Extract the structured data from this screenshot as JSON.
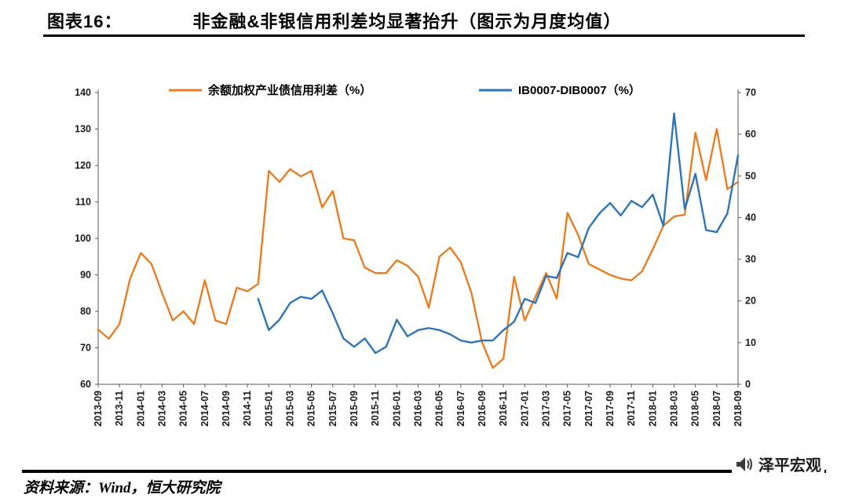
{
  "header": {
    "label": "图表16：",
    "title": "非金融&非银信用利差均显著抬升（图示为月度均值）"
  },
  "chart_data": {
    "type": "line",
    "title": "非金融&非银信用利差均显著抬升（图示为月度均值）",
    "grid": false,
    "legend_position": "top",
    "x": [
      "2013-09",
      "2013-10",
      "2013-11",
      "2013-12",
      "2014-01",
      "2014-02",
      "2014-03",
      "2014-04",
      "2014-05",
      "2014-06",
      "2014-07",
      "2014-08",
      "2014-09",
      "2014-10",
      "2014-11",
      "2014-12",
      "2015-01",
      "2015-02",
      "2015-03",
      "2015-04",
      "2015-05",
      "2015-06",
      "2015-07",
      "2015-08",
      "2015-09",
      "2015-10",
      "2015-11",
      "2015-12",
      "2016-01",
      "2016-02",
      "2016-03",
      "2016-04",
      "2016-05",
      "2016-06",
      "2016-07",
      "2016-08",
      "2016-09",
      "2016-10",
      "2016-11",
      "2016-12",
      "2017-01",
      "2017-02",
      "2017-03",
      "2017-04",
      "2017-05",
      "2017-06",
      "2017-07",
      "2017-08",
      "2017-09",
      "2017-10",
      "2017-11",
      "2017-12",
      "2018-01",
      "2018-02",
      "2018-03",
      "2018-04",
      "2018-05",
      "2018-06",
      "2018-07",
      "2018-08",
      "2018-09"
    ],
    "x_tick_labels": [
      "2013-09",
      "2013-11",
      "2014-01",
      "2014-03",
      "2014-05",
      "2014-07",
      "2014-09",
      "2014-11",
      "2015-01",
      "2015-03",
      "2015-05",
      "2015-07",
      "2015-09",
      "2015-11",
      "2016-01",
      "2016-03",
      "2016-05",
      "2016-07",
      "2016-09",
      "2016-11",
      "2017-01",
      "2017-03",
      "2017-05",
      "2017-07",
      "2017-09",
      "2017-11",
      "2018-01",
      "2018-03",
      "2018-05",
      "2018-07",
      "2018-09"
    ],
    "left_axis": {
      "min": 60,
      "max": 140,
      "ticks": [
        140,
        130,
        120,
        110,
        100,
        90,
        80,
        70,
        60
      ]
    },
    "right_axis": {
      "min": 0,
      "max": 70,
      "ticks": [
        70,
        60,
        50,
        40,
        30,
        20,
        10,
        0
      ]
    },
    "series": [
      {
        "name": "余额加权产业债信用利差（%）",
        "axis": "left",
        "color": "#E87D22",
        "values": [
          75,
          72.5,
          76.5,
          89,
          96,
          93,
          85,
          77.5,
          80,
          76.5,
          88.5,
          77.5,
          76.5,
          86.5,
          85.5,
          87.5,
          118.5,
          115.5,
          119,
          117,
          118.5,
          108.5,
          113,
          100,
          99.5,
          92,
          90.5,
          90.5,
          94,
          92.5,
          89.5,
          81,
          95,
          97.5,
          93.5,
          85,
          71.5,
          64.5,
          67,
          89.5,
          77.5,
          84,
          90.5,
          83.5,
          107,
          101,
          93,
          91.5,
          90,
          89,
          88.5,
          91,
          97,
          103.5,
          106,
          106.5,
          129,
          116,
          130,
          113.5,
          115.5
        ]
      },
      {
        "name": "IB0007-DIB0007（%）",
        "axis": "right",
        "color": "#2E75B6",
        "values": [
          null,
          null,
          null,
          null,
          null,
          null,
          null,
          null,
          null,
          null,
          null,
          null,
          null,
          null,
          null,
          20.5,
          13,
          15.5,
          19.5,
          21,
          20.5,
          22.5,
          17,
          11,
          9,
          11,
          7.5,
          9,
          15.5,
          11.5,
          13,
          13.5,
          13,
          12,
          10.5,
          10,
          10.5,
          10.5,
          13,
          15,
          20.5,
          19.5,
          26,
          25.5,
          31.5,
          30.5,
          37.5,
          41,
          43.5,
          40.5,
          44,
          42.5,
          45.5,
          38,
          65,
          42,
          50.5,
          37,
          36.5,
          41,
          55
        ]
      }
    ]
  },
  "footer": {
    "source": "资料来源：Wind，恒大研究院",
    "watermark": "泽平宏观"
  }
}
